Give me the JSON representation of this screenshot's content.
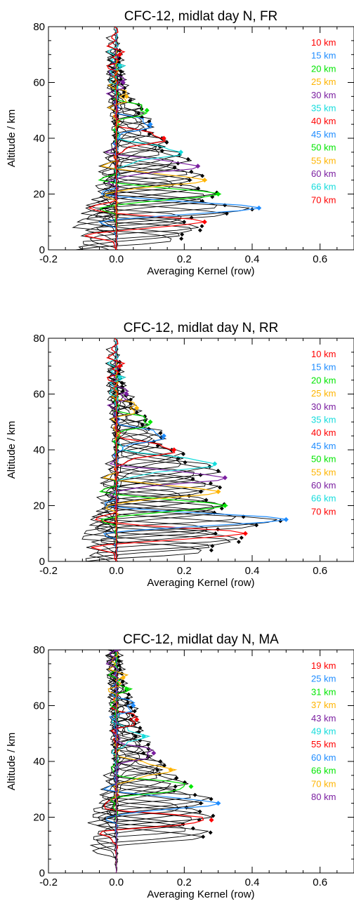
{
  "chart_data": [
    {
      "type": "line",
      "title": "CFC-12, midlat day N, FR",
      "xlabel": "Averaging Kernel (row)",
      "ylabel": "Altitude / km",
      "xlim": [
        -0.2,
        0.7
      ],
      "ylim": [
        0,
        80
      ],
      "xticks": [
        "-0.2",
        "0.0",
        "0.2",
        "0.4",
        "0.6"
      ],
      "yticks": [
        "0",
        "20",
        "40",
        "60",
        "80"
      ],
      "legend_position": "top-right",
      "grid": false,
      "series": [
        {
          "name": "10 km",
          "color": "#ff0000",
          "peak_altitude": 10,
          "peak_value": 0.26
        },
        {
          "name": "15 km",
          "color": "#1e8cff",
          "peak_altitude": 15,
          "peak_value": 0.42
        },
        {
          "name": "20 km",
          "color": "#00e600",
          "peak_altitude": 20,
          "peak_value": 0.3
        },
        {
          "name": "25 km",
          "color": "#ffb400",
          "peak_altitude": 25,
          "peak_value": 0.26
        },
        {
          "name": "30 km",
          "color": "#7a1ea0",
          "peak_altitude": 30,
          "peak_value": 0.24
        },
        {
          "name": "35 km",
          "color": "#14dcdc",
          "peak_altitude": 35,
          "peak_value": 0.19
        },
        {
          "name": "40 km",
          "color": "#ff0000",
          "peak_altitude": 40,
          "peak_value": 0.14
        },
        {
          "name": "45 km",
          "color": "#1e8cff",
          "peak_altitude": 45,
          "peak_value": 0.1
        },
        {
          "name": "50 km",
          "color": "#00e600",
          "peak_altitude": 50,
          "peak_value": 0.09
        },
        {
          "name": "55 km",
          "color": "#ffb400",
          "peak_altitude": 55,
          "peak_value": 0.03
        },
        {
          "name": "60 km",
          "color": "#7a1ea0",
          "peak_altitude": 60,
          "peak_value": 0.02
        },
        {
          "name": "66 km",
          "color": "#14dcdc",
          "peak_altitude": 66,
          "peak_value": 0.01
        },
        {
          "name": "70 km",
          "color": "#ff0000",
          "peak_altitude": 70,
          "peak_value": 0.01
        }
      ]
    },
    {
      "type": "line",
      "title": "CFC-12, midlat day N, RR",
      "xlabel": "Averaging Kernel (row)",
      "ylabel": "Altitude / km",
      "xlim": [
        -0.2,
        0.7
      ],
      "ylim": [
        0,
        80
      ],
      "xticks": [
        "-0.2",
        "0.0",
        "0.2",
        "0.4",
        "0.6"
      ],
      "yticks": [
        "0",
        "20",
        "40",
        "60",
        "80"
      ],
      "legend_position": "top-right",
      "grid": false,
      "series": [
        {
          "name": "10 km",
          "color": "#ff0000",
          "peak_altitude": 10,
          "peak_value": 0.38
        },
        {
          "name": "15 km",
          "color": "#1e8cff",
          "peak_altitude": 15,
          "peak_value": 0.5
        },
        {
          "name": "20 km",
          "color": "#00e600",
          "peak_altitude": 20,
          "peak_value": 0.32
        },
        {
          "name": "25 km",
          "color": "#ffb400",
          "peak_altitude": 25,
          "peak_value": 0.3
        },
        {
          "name": "30 km",
          "color": "#7a1ea0",
          "peak_altitude": 30,
          "peak_value": 0.32
        },
        {
          "name": "35 km",
          "color": "#14dcdc",
          "peak_altitude": 35,
          "peak_value": 0.29
        },
        {
          "name": "40 km",
          "color": "#ff0000",
          "peak_altitude": 40,
          "peak_value": 0.17
        },
        {
          "name": "45 km",
          "color": "#1e8cff",
          "peak_altitude": 45,
          "peak_value": 0.14
        },
        {
          "name": "50 km",
          "color": "#00e600",
          "peak_altitude": 50,
          "peak_value": 0.1
        },
        {
          "name": "55 km",
          "color": "#ffb400",
          "peak_altitude": 55,
          "peak_value": 0.06
        },
        {
          "name": "60 km",
          "color": "#7a1ea0",
          "peak_altitude": 60,
          "peak_value": 0.03
        },
        {
          "name": "66 km",
          "color": "#14dcdc",
          "peak_altitude": 66,
          "peak_value": 0.01
        },
        {
          "name": "70 km",
          "color": "#ff0000",
          "peak_altitude": 70,
          "peak_value": 0.01
        }
      ]
    },
    {
      "type": "line",
      "title": "CFC-12, midlat day N, MA",
      "xlabel": "Averaging Kernel (row)",
      "ylabel": "Altitude / km",
      "xlim": [
        -0.2,
        0.7
      ],
      "ylim": [
        0,
        80
      ],
      "xticks": [
        "-0.2",
        "0.0",
        "0.2",
        "0.4",
        "0.6"
      ],
      "yticks": [
        "0",
        "20",
        "40",
        "60",
        "80"
      ],
      "legend_position": "top-right",
      "grid": false,
      "series": [
        {
          "name": "19 km",
          "color": "#ff0000",
          "peak_altitude": 19,
          "peak_value": 0.28
        },
        {
          "name": "25 km",
          "color": "#1e8cff",
          "peak_altitude": 25,
          "peak_value": 0.3
        },
        {
          "name": "31 km",
          "color": "#00e600",
          "peak_altitude": 31,
          "peak_value": 0.22
        },
        {
          "name": "37 km",
          "color": "#ffb400",
          "peak_altitude": 37,
          "peak_value": 0.16
        },
        {
          "name": "43 km",
          "color": "#7a1ea0",
          "peak_altitude": 43,
          "peak_value": 0.11
        },
        {
          "name": "49 km",
          "color": "#14dcdc",
          "peak_altitude": 49,
          "peak_value": 0.08
        },
        {
          "name": "55 km",
          "color": "#ff0000",
          "peak_altitude": 55,
          "peak_value": 0.06
        },
        {
          "name": "60 km",
          "color": "#1e8cff",
          "peak_altitude": 60,
          "peak_value": 0.05
        },
        {
          "name": "66 km",
          "color": "#00e600",
          "peak_altitude": 66,
          "peak_value": 0.03
        },
        {
          "name": "70 km",
          "color": "#ffb400",
          "peak_altitude": 70,
          "peak_value": 0.02
        },
        {
          "name": "80 km",
          "color": "#7a1ea0",
          "peak_altitude": 80,
          "peak_value": 0.0
        }
      ]
    }
  ]
}
